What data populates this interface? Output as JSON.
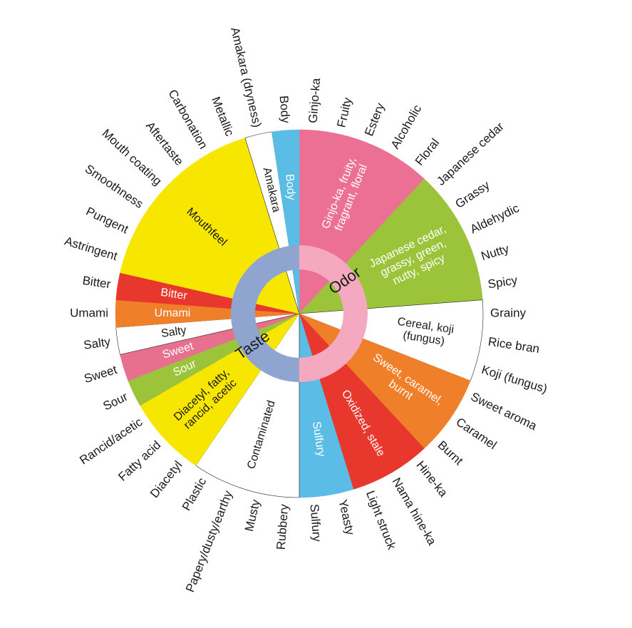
{
  "halves": [
    {
      "label": "Odor",
      "ring_color": "#f4a9c0",
      "segments": [
        {
          "lines": [
            "Ginjo-ka, fruity,",
            "fragrant, floral"
          ],
          "color": "#eb7094",
          "terms": [
            "Ginjo-ka",
            "Fruity",
            "Estery",
            "Alcoholic",
            "Floral"
          ]
        },
        {
          "lines": [
            "Japanese cedar,",
            "grassy, green,",
            "nutty, spicy"
          ],
          "color": "#9cc43b",
          "terms": [
            "Japanese cedar",
            "Grassy",
            "Aldehydic",
            "Nutty",
            "Spicy"
          ]
        },
        {
          "lines": [
            "Cereal, koji",
            "(fungus)"
          ],
          "color": "#ffffff",
          "terms": [
            "Grainy",
            "Rice bran",
            "Koji (fungus)"
          ]
        },
        {
          "lines": [
            "Sweet, caramel,",
            "burnt"
          ],
          "color": "#f07f2a",
          "terms": [
            "Sweet aroma",
            "Caramel",
            "Burnt"
          ]
        },
        {
          "lines": [
            "Oxidized, stale"
          ],
          "color": "#e8372c",
          "terms": [
            "Hine-ka",
            "Nama hine-ka",
            "Light struck"
          ]
        },
        {
          "lines": [
            "Sulfury"
          ],
          "color": "#5bbde6",
          "terms": [
            "Yeasty",
            "Sulfury"
          ]
        }
      ]
    },
    {
      "label": "Taste",
      "ring_color": "#8fa4cf",
      "segments": [
        {
          "lines": [
            "Contaminated"
          ],
          "color": "#ffffff",
          "terms": [
            "Rubbery",
            "Musty",
            "Papery/dusty/earthy",
            "Plastic"
          ]
        },
        {
          "lines": [
            "Diacetyl, fatty,",
            "rancid, acetic"
          ],
          "color": "#f7e600",
          "terms": [
            "Diacetyl",
            "Fatty acid",
            "Rancid/acetic"
          ]
        },
        {
          "lines": [
            "Sour"
          ],
          "color": "#9cc43b",
          "terms": [
            "Sour"
          ]
        },
        {
          "lines": [
            "Sweet"
          ],
          "color": "#e8708f",
          "terms": [
            "Sweet"
          ]
        },
        {
          "lines": [
            "Salty"
          ],
          "color": "#ffffff",
          "terms": [
            "Salty"
          ]
        },
        {
          "lines": [
            "Umami"
          ],
          "color": "#f07f2a",
          "terms": [
            "Umami"
          ]
        },
        {
          "lines": [
            "Bitter"
          ],
          "color": "#e8372c",
          "terms": [
            "Bitter"
          ]
        },
        {
          "lines": [
            "Mouthfeel"
          ],
          "color": "#f7e600",
          "terms": [
            "Astringent",
            "Pungent",
            "Smoothness",
            "Mouth coating",
            "Aftertaste",
            "Carbonation",
            "Metallic"
          ]
        },
        {
          "lines": [
            "Amakara"
          ],
          "color": "#ffffff",
          "terms": [
            "Amakara (dryness)"
          ]
        },
        {
          "lines": [
            "Body"
          ],
          "color": "#5bbde6",
          "terms": [
            "Body"
          ]
        }
      ]
    }
  ]
}
